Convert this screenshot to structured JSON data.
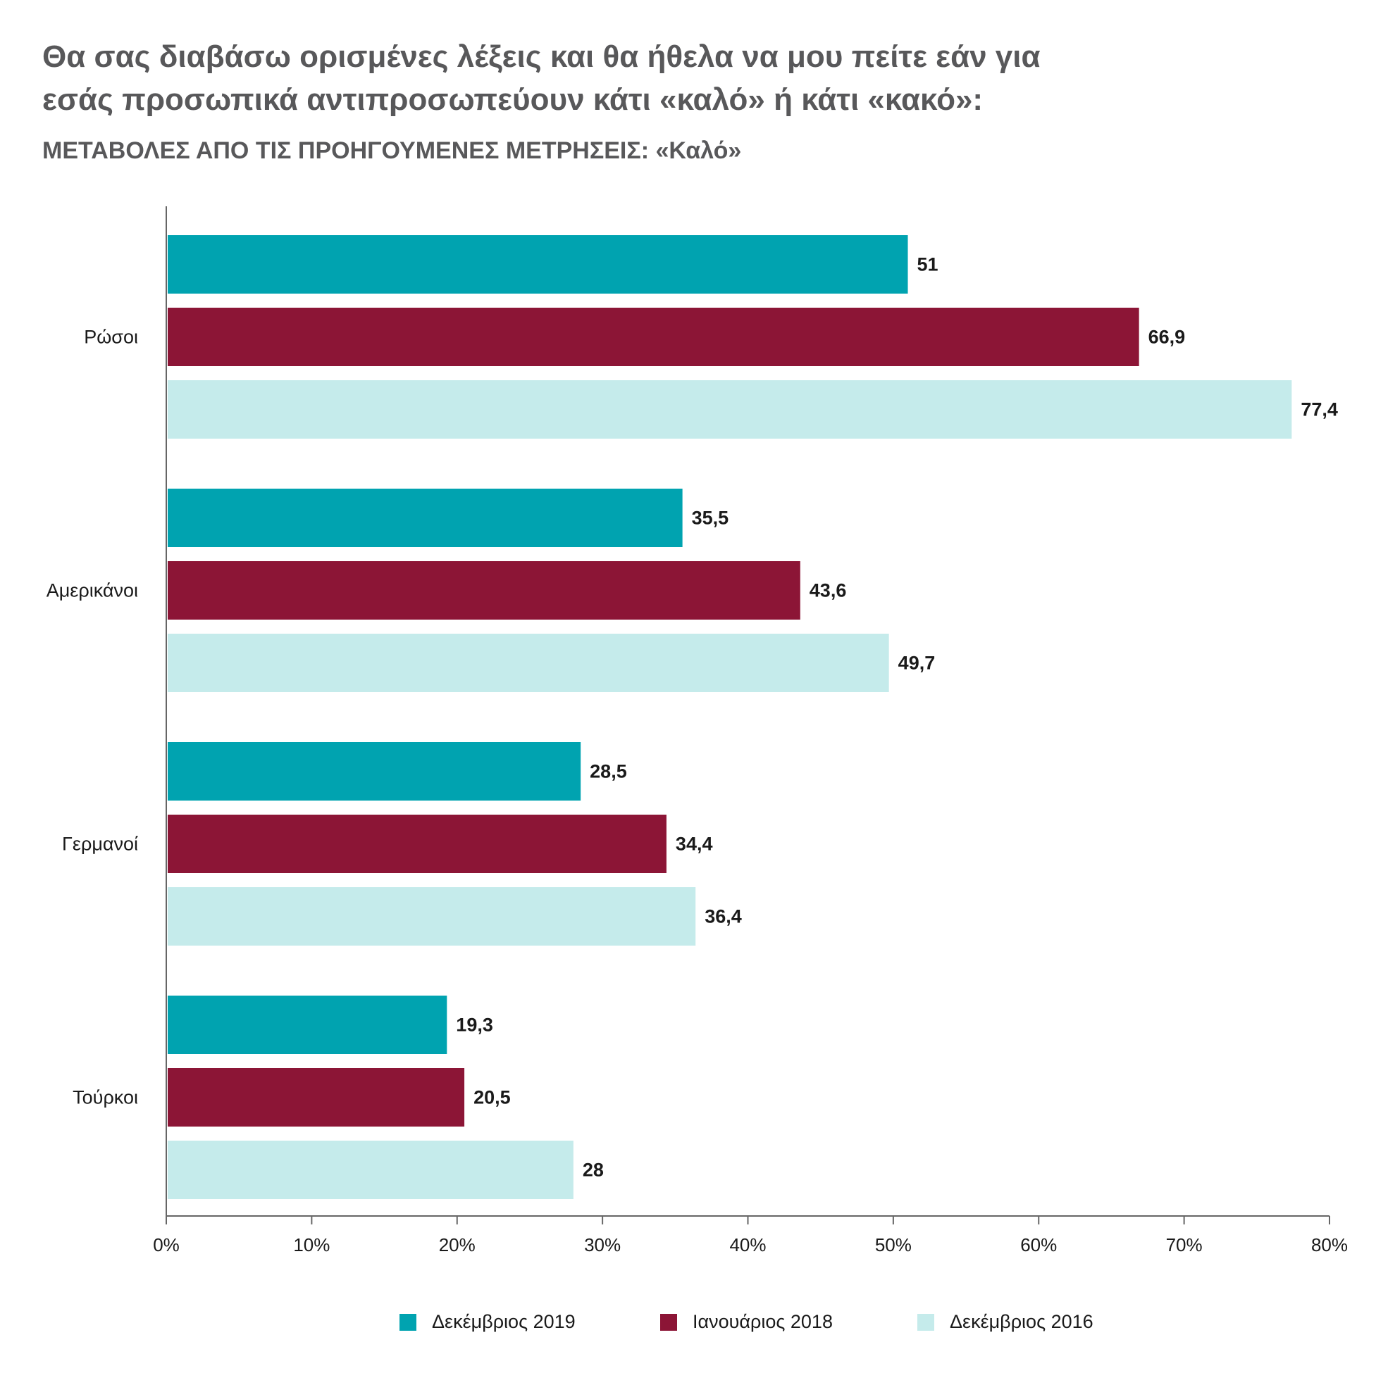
{
  "header": {
    "title_line1": "Θα σας διαβάσω ορισμένες λέξεις και θα ήθελα να μου πείτε εάν για",
    "title_line2": "εσάς προσωπικά αντιπροσωπεύουν κάτι «καλό» ή κάτι «κακό»:",
    "subtitle": "ΜΕΤΑΒΟΛΕΣ ΑΠΟ ΤΙΣ ΠΡΟΗΓΟΥΜΕΝΕΣ ΜΕΤΡΗΣΕΙΣ: «Καλό»"
  },
  "chart_data": {
    "type": "bar",
    "orientation": "horizontal",
    "categories": [
      "Ρώσοι",
      "Αμερικάνοι",
      "Γερμανοί",
      "Τούρκοι"
    ],
    "series": [
      {
        "name": "Δεκέμβριος 2019",
        "color": "#00a3b0",
        "values": [
          51,
          35.5,
          28.5,
          19.3
        ],
        "labels": [
          "51",
          "35,5",
          "28,5",
          "19,3"
        ]
      },
      {
        "name": "Ιανουάριος 2018",
        "color": "#8c1536",
        "values": [
          66.9,
          43.6,
          34.4,
          20.5
        ],
        "labels": [
          "66,9",
          "43,6",
          "34,4",
          "20,5"
        ]
      },
      {
        "name": "Δεκέμβριος 2016",
        "color": "#c5ebeb",
        "values": [
          77.4,
          49.7,
          36.4,
          28
        ],
        "labels": [
          "77,4",
          "49,7",
          "36,4",
          "28"
        ]
      }
    ],
    "x_ticks": [
      "0%",
      "10%",
      "20%",
      "30%",
      "40%",
      "50%",
      "60%",
      "70%",
      "80%"
    ],
    "xlim": [
      0,
      80
    ],
    "grid": false,
    "legend_position": "bottom"
  }
}
